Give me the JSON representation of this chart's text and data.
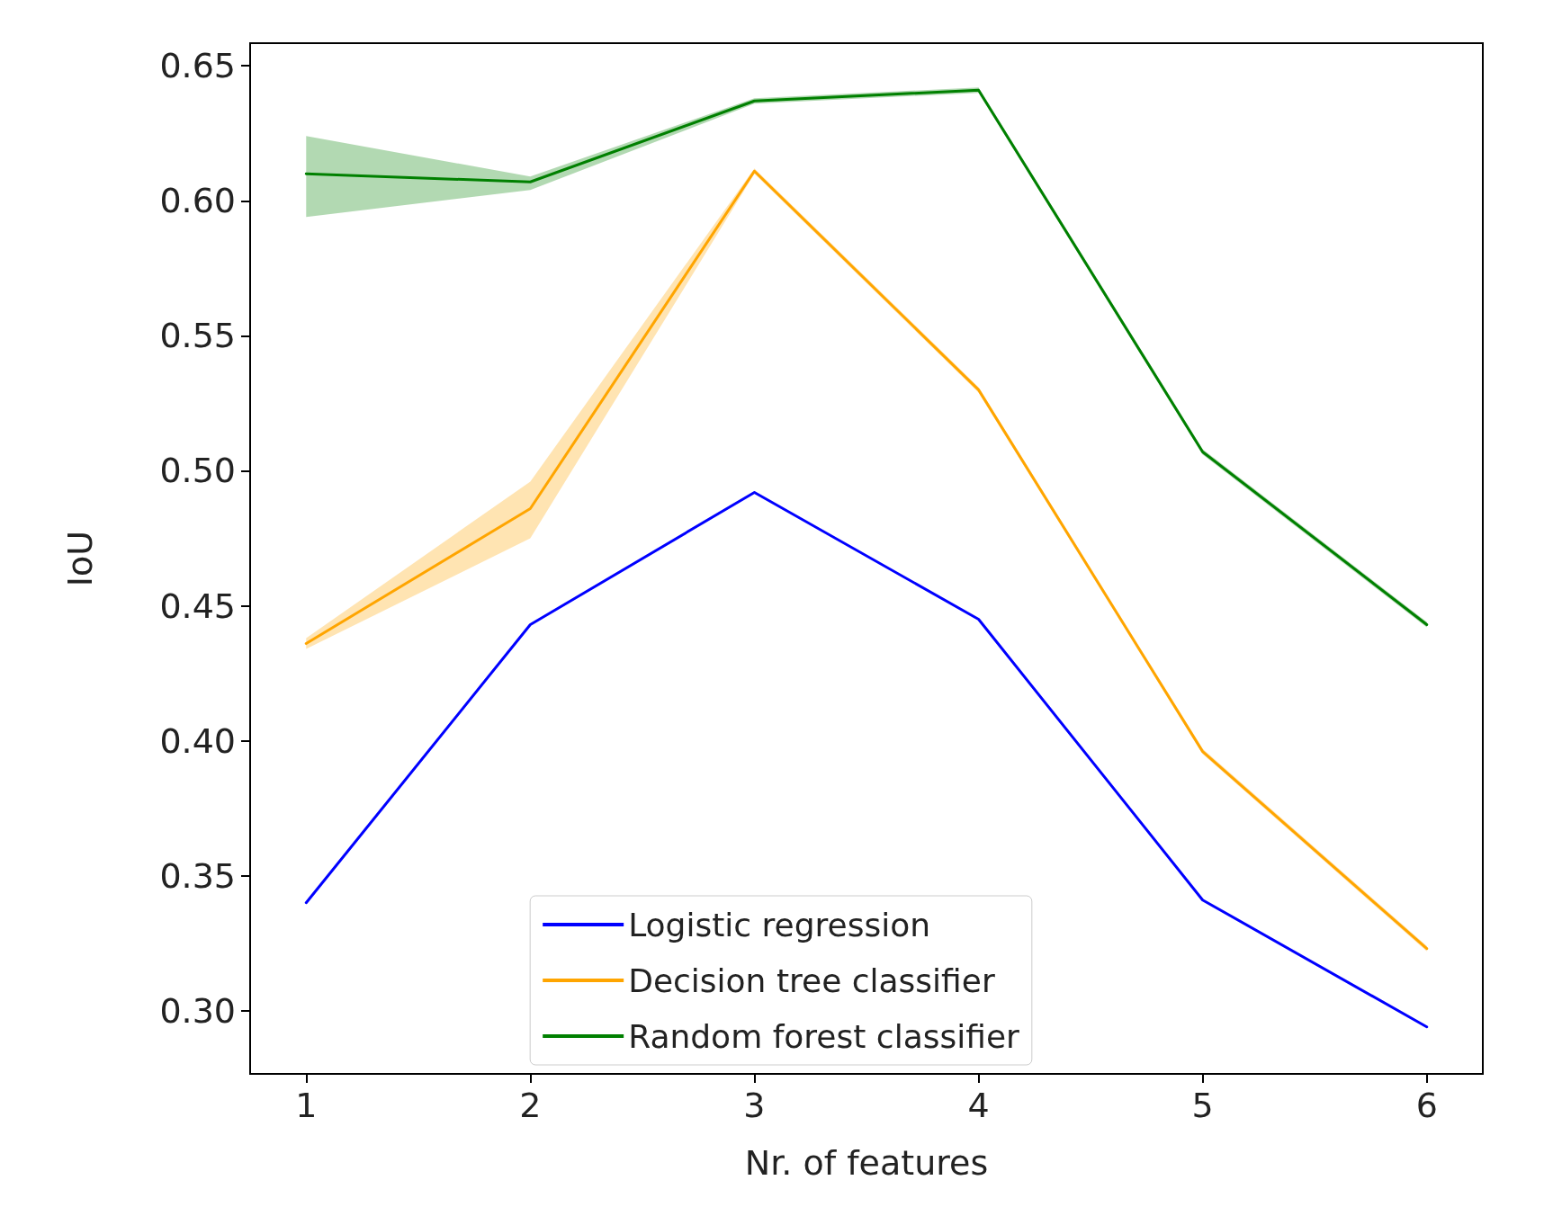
{
  "chart_data": {
    "type": "line",
    "xlabel": "Nr. of features",
    "ylabel": "IoU",
    "x": [
      1,
      2,
      3,
      4,
      5,
      6
    ],
    "series": [
      {
        "name": "Logistic regression",
        "color": "#0000ff",
        "values": [
          0.34,
          0.443,
          0.492,
          0.445,
          0.341,
          0.294
        ]
      },
      {
        "name": "Decision tree classifier",
        "color": "#ffa500",
        "values": [
          0.436,
          0.486,
          0.611,
          0.53,
          0.396,
          0.323
        ],
        "lower": [
          0.434,
          0.475,
          0.61,
          0.529,
          0.395,
          0.322
        ],
        "upper": [
          0.438,
          0.496,
          0.612,
          0.531,
          0.397,
          0.324
        ]
      },
      {
        "name": "Random forest classifier",
        "color": "#008000",
        "values": [
          0.61,
          0.607,
          0.637,
          0.641,
          0.507,
          0.443
        ],
        "lower": [
          0.594,
          0.604,
          0.636,
          0.64,
          0.506,
          0.442
        ],
        "upper": [
          0.624,
          0.609,
          0.638,
          0.642,
          0.508,
          0.444
        ]
      }
    ],
    "xlim": [
      0.75,
      6.25
    ],
    "ylim": [
      0.2766,
      0.6584
    ],
    "xticks": [
      1,
      2,
      3,
      4,
      5,
      6
    ],
    "yticks": [
      {
        "value": 0.3,
        "label": "0.30"
      },
      {
        "value": 0.35,
        "label": "0.35"
      },
      {
        "value": 0.4,
        "label": "0.40"
      },
      {
        "value": 0.45,
        "label": "0.45"
      },
      {
        "value": 0.5,
        "label": "0.50"
      },
      {
        "value": 0.55,
        "label": "0.55"
      },
      {
        "value": 0.6,
        "label": "0.60"
      },
      {
        "value": 0.65,
        "label": "0.65"
      }
    ],
    "legend": "bottom",
    "grid": false,
    "marker": "none",
    "line_style": "solid"
  }
}
